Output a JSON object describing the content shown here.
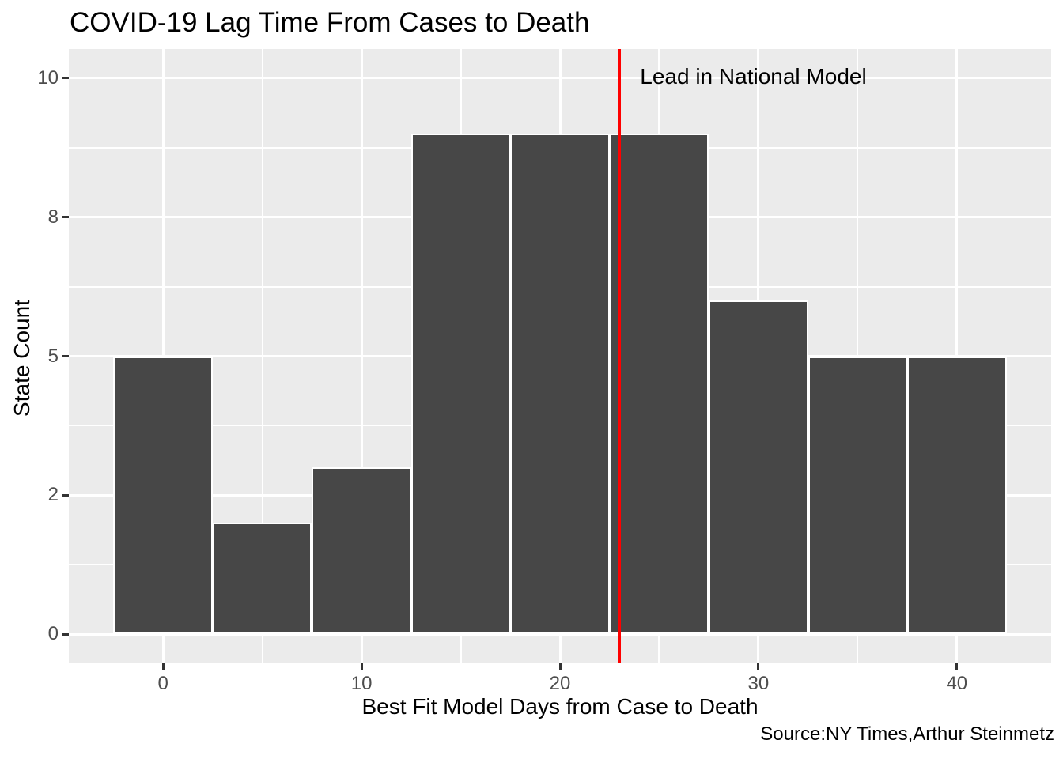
{
  "chart_data": {
    "type": "bar",
    "subtype": "histogram",
    "title": "COVID-19 Lag Time From Cases to Death",
    "xlabel": "Best Fit Model Days from Case to Death",
    "ylabel": "State Count",
    "caption": "Source:NY Times,Arthur Steinmetz",
    "bin_centers": [
      0,
      5,
      10,
      15,
      20,
      25,
      30,
      35,
      40
    ],
    "bin_width": 5,
    "values": [
      5,
      2,
      3,
      9,
      9,
      9,
      6,
      5,
      5
    ],
    "x_ticks": [
      {
        "value": 0,
        "label": "0"
      },
      {
        "value": 10,
        "label": "10"
      },
      {
        "value": 20,
        "label": "20"
      },
      {
        "value": 30,
        "label": "30"
      },
      {
        "value": 40,
        "label": "40"
      }
    ],
    "y_ticks": [
      {
        "value": 0,
        "label": "0"
      },
      {
        "value": 2.5,
        "label": "2"
      },
      {
        "value": 5,
        "label": "5"
      },
      {
        "value": 7.5,
        "label": "8"
      },
      {
        "value": 10,
        "label": "10"
      }
    ],
    "x_minor_ticks": [
      5,
      15,
      25,
      35
    ],
    "y_minor_ticks": [
      1.25,
      3.75,
      6.25,
      8.75
    ],
    "xlim": [
      -4.75,
      44.75
    ],
    "ylim": [
      -0.525,
      10.525
    ],
    "grid": true,
    "legend_position": "none",
    "vline": {
      "x": 23,
      "label": "Lead in National Model",
      "color": "#FF0000"
    },
    "colors": {
      "bar_fill": "#474747",
      "bar_stroke": "#FFFFFF",
      "panel_bg": "#EBEBEB",
      "grid": "#FFFFFF",
      "tick_text": "#4D4D4D",
      "tick_mark": "#333333",
      "vline": "#FF0000"
    }
  }
}
